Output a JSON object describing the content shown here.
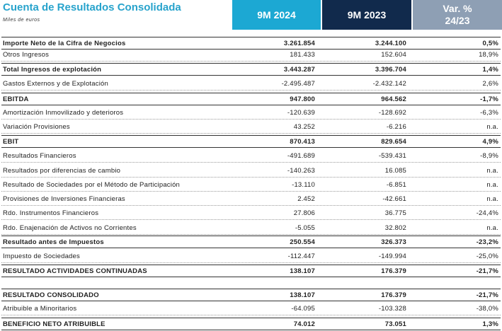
{
  "header": {
    "title": "Cuenta de Resultados Consolidada",
    "subtitle": "Miles de euros",
    "columns": [
      "9M 2024",
      "9M 2023",
      "Var. % 24/23"
    ]
  },
  "table": {
    "rows": [
      [
        "Importe Neto de la Cifra de Negocios",
        "3.261.854",
        "3.244.100",
        "0,5%"
      ],
      [
        "Otros Ingresos",
        "181.433",
        "152.604",
        "18,9%"
      ],
      [
        "Total Ingresos de explotación",
        "3.443.287",
        "3.396.704",
        "1,4%"
      ],
      [
        "Gastos Externos y de Explotación",
        "-2.495.487",
        "-2.432.142",
        "2,6%"
      ],
      [
        "EBITDA",
        "947.800",
        "964.562",
        "-1,7%"
      ],
      [
        "Amortización Inmovilizado y deterioros",
        "-120.639",
        "-128.692",
        "-6,3%"
      ],
      [
        "Variación Provisiones",
        "43.252",
        "-6.216",
        "n.a."
      ],
      [
        "EBIT",
        "870.413",
        "829.654",
        "4,9%"
      ],
      [
        "Resultados Financieros",
        "-491.689",
        "-539.431",
        "-8,9%"
      ],
      [
        "Resultados por diferencias de cambio",
        "-140.263",
        "16.085",
        "n.a."
      ],
      [
        "Resultado de Sociedades por el Método de Participación",
        "-13.110",
        "-6.851",
        "n.a."
      ],
      [
        "Provisiones de Inversiones Financieras",
        "2.452",
        "-42.661",
        "n.a."
      ],
      [
        "Rdo. Instrumentos Financieros",
        "27.806",
        "36.775",
        "-24,4%"
      ],
      [
        "Rdo. Enajenación de Activos no Corrientes",
        "-5.055",
        "32.802",
        "n.a."
      ],
      [
        "Resultado antes de Impuestos",
        "250.554",
        "326.373",
        "-23,2%"
      ],
      [
        "Impuesto de Sociedades",
        "-112.447",
        "-149.994",
        "-25,0%"
      ],
      [
        "RESULTADO ACTIVIDADES CONTINUADAS",
        "138.107",
        "176.379",
        "-21,7%"
      ],
      [
        "RESULTADO CONSOLIDADO",
        "138.107",
        "176.379",
        "-21,7%"
      ],
      [
        "Atribuible a Minoritarios",
        "-64.095",
        "-103.328",
        "-38,0%"
      ],
      [
        "BENEFICIO NETO ATRIBUIBLE",
        "74.012",
        "73.051",
        "1,3%"
      ]
    ]
  }
}
